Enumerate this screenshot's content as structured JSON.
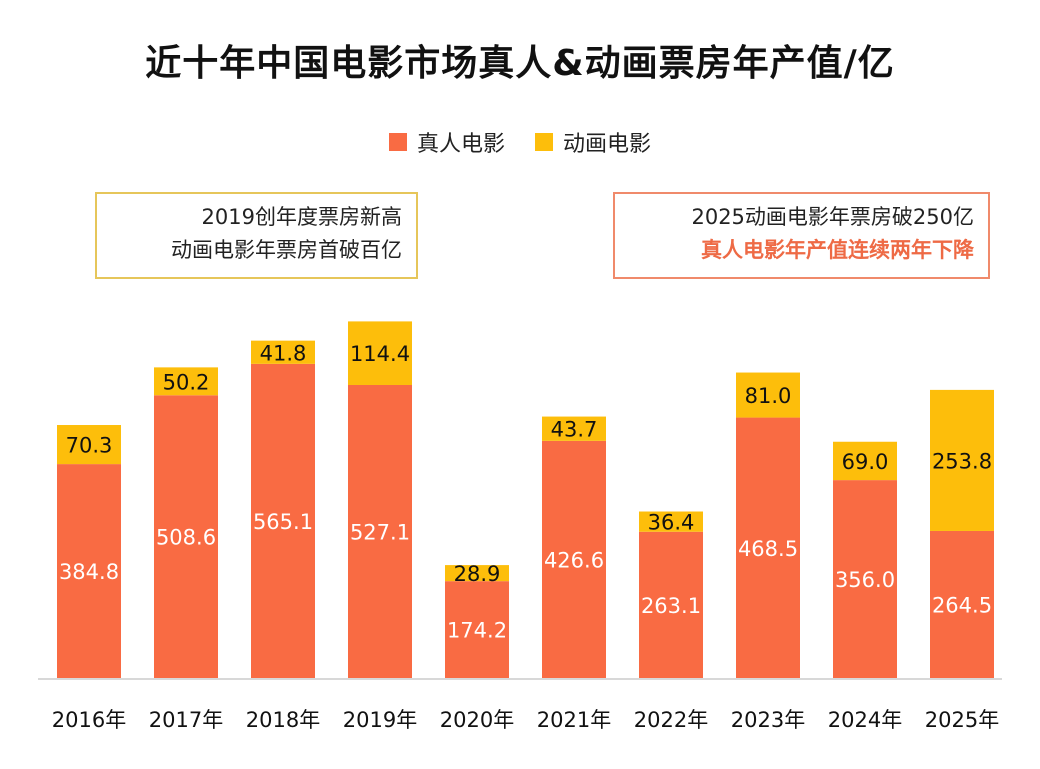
{
  "chart_data": {
    "type": "bar",
    "stacked": true,
    "title": "近十年中国电影市场真人&动画票房年产值/亿",
    "categories": [
      "2016年",
      "2017年",
      "2018年",
      "2019年",
      "2020年",
      "2021年",
      "2022年",
      "2023年",
      "2024年",
      "2025年"
    ],
    "series": [
      {
        "name": "真人电影",
        "color": "#F96B43",
        "values": [
          384.8,
          508.6,
          565.1,
          527.1,
          174.2,
          426.6,
          263.1,
          468.5,
          356.0,
          264.5
        ]
      },
      {
        "name": "动画电影",
        "color": "#FDBE0B",
        "values": [
          70.3,
          50.2,
          41.8,
          114.4,
          28.9,
          43.7,
          36.4,
          81.0,
          69.0,
          253.8
        ]
      }
    ],
    "ylim": [
      0,
      680
    ],
    "xlabel": "",
    "ylabel": "",
    "legend": "top-center",
    "annotations": {
      "left": [
        "2019创年度票房新高",
        "动画电影年票房首破百亿"
      ],
      "right": [
        "2025动画电影年票房破250亿",
        "真人电影年产值连续两年下降"
      ]
    }
  }
}
